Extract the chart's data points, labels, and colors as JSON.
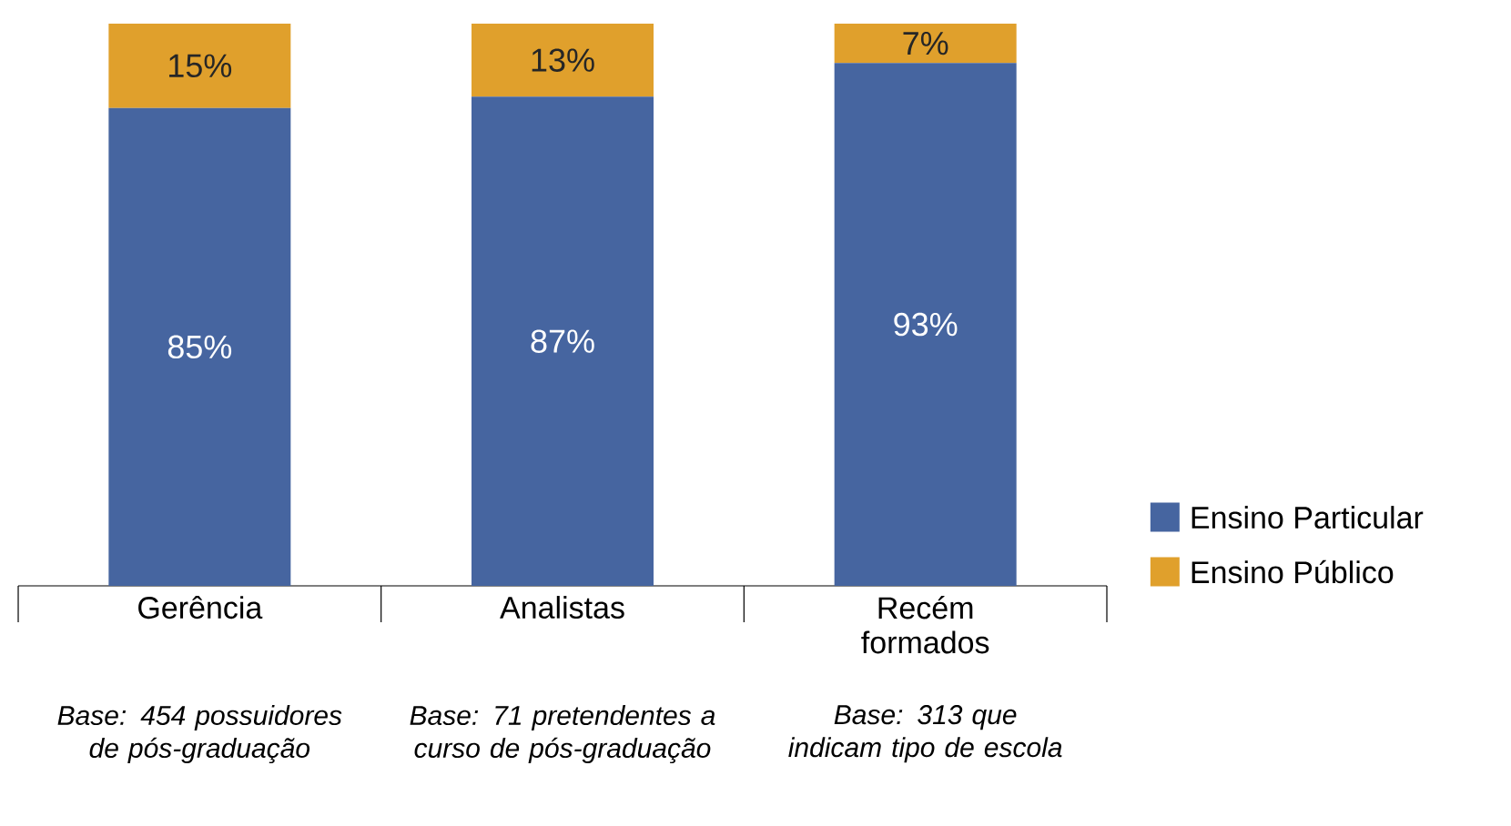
{
  "chart_data": {
    "type": "bar",
    "stacked": true,
    "categories": [
      "Gerência",
      "Analistas",
      "Recém formados"
    ],
    "series": [
      {
        "name": "Ensino Particular",
        "color": "#4665a0",
        "values": [
          85,
          87,
          93
        ],
        "value_labels": [
          "85%",
          "87%",
          "93%"
        ]
      },
      {
        "name": "Ensino Público",
        "color": "#e0a02c",
        "values": [
          15,
          13,
          7
        ],
        "value_labels": [
          "15%",
          "13%",
          "7%"
        ]
      }
    ],
    "legend": "right",
    "annotations": [
      "Base: 454 possuidores de pós-graduação",
      "Base: 71 pretendentes a curso de pós-graduação",
      "Base: 313 que indicam tipo de escola"
    ]
  }
}
